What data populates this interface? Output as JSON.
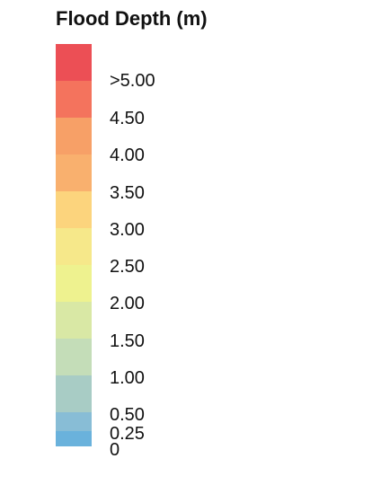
{
  "legend": {
    "title": "Flood Depth (m)",
    "swatches": [
      {
        "color": "#ec4f55"
      },
      {
        "color": "#f4735d"
      },
      {
        "color": "#f7a067"
      },
      {
        "color": "#f9b06e"
      },
      {
        "color": "#fcd47d"
      },
      {
        "color": "#f6e88a"
      },
      {
        "color": "#eef28f"
      },
      {
        "color": "#d9e8a5"
      },
      {
        "color": "#c4ddb8"
      },
      {
        "color": "#a8ccc5"
      },
      {
        "color": "#88bdd6"
      },
      {
        "color": "#6ab2dc"
      }
    ],
    "labels": [
      ">5.00",
      "4.50",
      "4.00",
      "3.50",
      "3.00",
      "2.50",
      "2.00",
      "1.50",
      "1.00",
      "0.50",
      "0.25",
      "0"
    ]
  }
}
